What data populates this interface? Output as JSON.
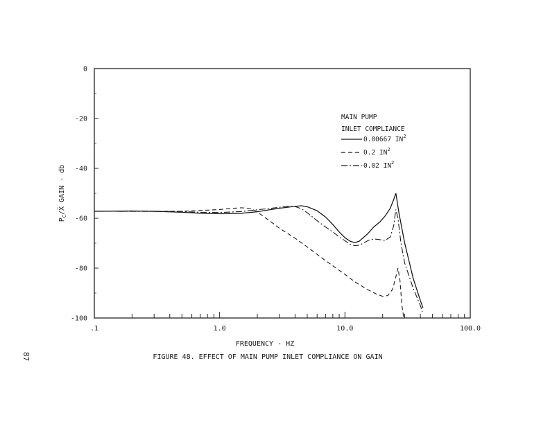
{
  "page_number": "87",
  "chart_data": {
    "type": "line",
    "title": "",
    "caption": "FIGURE 48.  EFFECT OF MAIN PUMP INLET COMPLIANCE ON GAIN",
    "xlabel": "FREQUENCY - HZ",
    "ylabel": "P",
    "ylabel_sub": "C",
    "ylabel_rest": "/Ẍ GAIN - db",
    "x_scale": "log",
    "xlim": [
      0.1,
      100
    ],
    "ylim": [
      -100,
      0
    ],
    "x_ticklabels": [
      {
        "value": 0.1,
        "label": ".1"
      },
      {
        "value": 1,
        "label": "1.0"
      },
      {
        "value": 10,
        "label": "10.0"
      },
      {
        "value": 100,
        "label": "100.0"
      }
    ],
    "y_ticklabels": [
      {
        "value": 0,
        "label": "0"
      },
      {
        "value": -20,
        "label": "-20"
      },
      {
        "value": -40,
        "label": "-40"
      },
      {
        "value": -60,
        "label": "-60"
      },
      {
        "value": -80,
        "label": "-80"
      },
      {
        "value": -100,
        "label": "-100"
      }
    ],
    "grid": false,
    "legend": {
      "position": "upper-right",
      "title_lines": [
        "MAIN PUMP",
        "INLET COMPLIANCE"
      ],
      "sup": "2"
    },
    "series": [
      {
        "name": "0.00667 IN",
        "style": "solid",
        "points": [
          [
            0.1,
            -57.2
          ],
          [
            0.2,
            -57.1
          ],
          [
            0.3,
            -57.2
          ],
          [
            0.5,
            -57.6
          ],
          [
            0.7,
            -58.0
          ],
          [
            1.0,
            -58.2
          ],
          [
            1.5,
            -58.0
          ],
          [
            2.0,
            -57.4
          ],
          [
            2.5,
            -56.6
          ],
          [
            3.0,
            -56.0
          ],
          [
            3.5,
            -55.6
          ],
          [
            4.0,
            -55.2
          ],
          [
            4.5,
            -55.0
          ],
          [
            5.0,
            -55.4
          ],
          [
            6.0,
            -57.0
          ],
          [
            7.0,
            -59.5
          ],
          [
            8.0,
            -62.5
          ],
          [
            9.0,
            -65.5
          ],
          [
            10.0,
            -67.8
          ],
          [
            11.0,
            -69.2
          ],
          [
            12.0,
            -69.8
          ],
          [
            13.0,
            -69.2
          ],
          [
            15.0,
            -66.5
          ],
          [
            17.0,
            -63.5
          ],
          [
            19.0,
            -61.5
          ],
          [
            21.0,
            -59.0
          ],
          [
            23.0,
            -56.0
          ],
          [
            24.5,
            -52.5
          ],
          [
            25.5,
            -50.0
          ],
          [
            27.0,
            -58.0
          ],
          [
            30.0,
            -70.0
          ],
          [
            35.0,
            -84.0
          ],
          [
            40.0,
            -93.0
          ],
          [
            42.0,
            -96.0
          ]
        ]
      },
      {
        "name": "0.2 IN",
        "style": "dashed",
        "points": [
          [
            0.1,
            -57.2
          ],
          [
            0.3,
            -57.2
          ],
          [
            0.5,
            -57.2
          ],
          [
            0.7,
            -56.9
          ],
          [
            1.0,
            -56.5
          ],
          [
            1.3,
            -56.0
          ],
          [
            1.5,
            -55.8
          ],
          [
            1.8,
            -56.2
          ],
          [
            2.0,
            -57.5
          ],
          [
            2.5,
            -61.0
          ],
          [
            3.0,
            -64.0
          ],
          [
            4.0,
            -68.0
          ],
          [
            5.0,
            -71.5
          ],
          [
            7.0,
            -77.0
          ],
          [
            10.0,
            -82.5
          ],
          [
            12.0,
            -85.5
          ],
          [
            15.0,
            -88.5
          ],
          [
            18.0,
            -90.5
          ],
          [
            20.0,
            -91.3
          ],
          [
            22.0,
            -91.0
          ],
          [
            24.0,
            -88.5
          ],
          [
            25.5,
            -83.5
          ],
          [
            26.5,
            -80.0
          ],
          [
            27.5,
            -85.0
          ],
          [
            28.5,
            -95.0
          ],
          [
            29.5,
            -100.0
          ]
        ]
      },
      {
        "name": "0.02 IN",
        "style": "dashdot",
        "points": [
          [
            0.1,
            -57.2
          ],
          [
            0.5,
            -57.3
          ],
          [
            0.7,
            -57.6
          ],
          [
            1.0,
            -57.7
          ],
          [
            1.5,
            -57.3
          ],
          [
            2.0,
            -56.6
          ],
          [
            2.5,
            -56.1
          ],
          [
            3.0,
            -55.6
          ],
          [
            3.5,
            -55.2
          ],
          [
            4.0,
            -55.3
          ],
          [
            4.5,
            -56.2
          ],
          [
            5.0,
            -57.8
          ],
          [
            6.0,
            -61.0
          ],
          [
            7.0,
            -63.5
          ],
          [
            8.0,
            -65.5
          ],
          [
            9.0,
            -67.5
          ],
          [
            10.0,
            -69.0
          ],
          [
            11.0,
            -70.5
          ],
          [
            12.0,
            -71.0
          ],
          [
            13.0,
            -70.8
          ],
          [
            14.0,
            -70.0
          ],
          [
            15.5,
            -68.8
          ],
          [
            17.0,
            -68.3
          ],
          [
            19.0,
            -68.6
          ],
          [
            21.0,
            -68.9
          ],
          [
            23.0,
            -67.5
          ],
          [
            24.5,
            -63.0
          ],
          [
            25.5,
            -56.5
          ],
          [
            26.5,
            -60.0
          ],
          [
            28.0,
            -70.0
          ],
          [
            30.0,
            -78.0
          ],
          [
            35.0,
            -88.0
          ],
          [
            40.0,
            -95.0
          ],
          [
            41.5,
            -97.5
          ]
        ]
      }
    ]
  }
}
